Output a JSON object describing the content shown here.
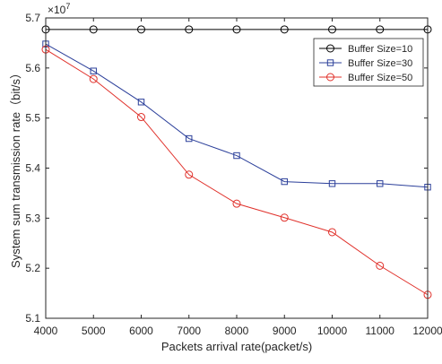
{
  "chart_data": {
    "type": "line",
    "x": [
      4000,
      5000,
      6000,
      7000,
      8000,
      9000,
      10000,
      11000,
      12000
    ],
    "xlabel": "Packets arrival rate(packet/s)",
    "ylabel": "System sum transmission rate（bit/s）",
    "exponent_label": "×10",
    "exponent_power": "7",
    "xlim": [
      4000,
      12000
    ],
    "ylim": [
      5.1,
      5.7
    ],
    "xticks": [
      "4000",
      "5000",
      "6000",
      "7000",
      "8000",
      "9000",
      "10000",
      "11000",
      "12000"
    ],
    "yticks": [
      "5.1",
      "5.2",
      "5.3",
      "5.4",
      "5.5",
      "5.6",
      "5.7"
    ],
    "legend_position": "top-right",
    "grid": false,
    "series": [
      {
        "name": "Buffer Size=10",
        "color": "#000000",
        "marker": "circle",
        "values": [
          5.677,
          5.677,
          5.677,
          5.677,
          5.677,
          5.677,
          5.677,
          5.677,
          5.677
        ]
      },
      {
        "name": "Buffer Size=30",
        "color": "#2b3f9a",
        "marker": "square",
        "values": [
          5.648,
          5.594,
          5.532,
          5.459,
          5.425,
          5.373,
          5.369,
          5.369,
          5.362
        ]
      },
      {
        "name": "Buffer Size=50",
        "color": "#e0302a",
        "marker": "circle",
        "values": [
          5.637,
          5.578,
          5.502,
          5.387,
          5.329,
          5.301,
          5.272,
          5.205,
          5.147
        ]
      }
    ]
  }
}
